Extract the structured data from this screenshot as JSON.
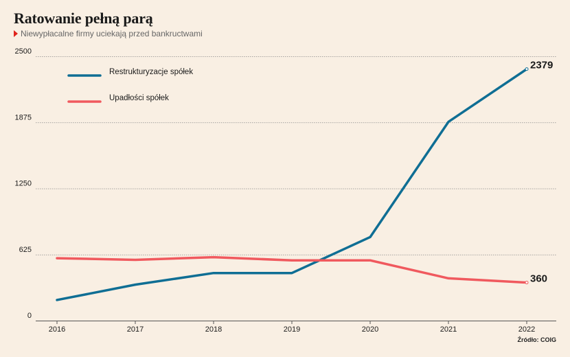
{
  "header": {
    "title": "Ratowanie pełną parą",
    "subtitle": "Niewypłacalne firmy uciekają przed bankructwami"
  },
  "source": "Źródło: COIG",
  "chart_data": {
    "type": "line",
    "x": [
      2016,
      2017,
      2018,
      2019,
      2020,
      2021,
      2022
    ],
    "ylim": [
      0,
      2500
    ],
    "yticks": [
      0,
      625,
      1250,
      1875,
      2500
    ],
    "grid": true,
    "legend_position": "top-left",
    "series": [
      {
        "name": "Restrukturyzacje spółek",
        "color": "#0f6e94",
        "values": [
          195,
          340,
          450,
          450,
          790,
          1880,
          2379
        ],
        "end_label": "2379"
      },
      {
        "name": "Upadłości spółek",
        "color": "#f0595e",
        "values": [
          590,
          575,
          600,
          570,
          570,
          400,
          360
        ],
        "end_label": "360"
      }
    ]
  }
}
